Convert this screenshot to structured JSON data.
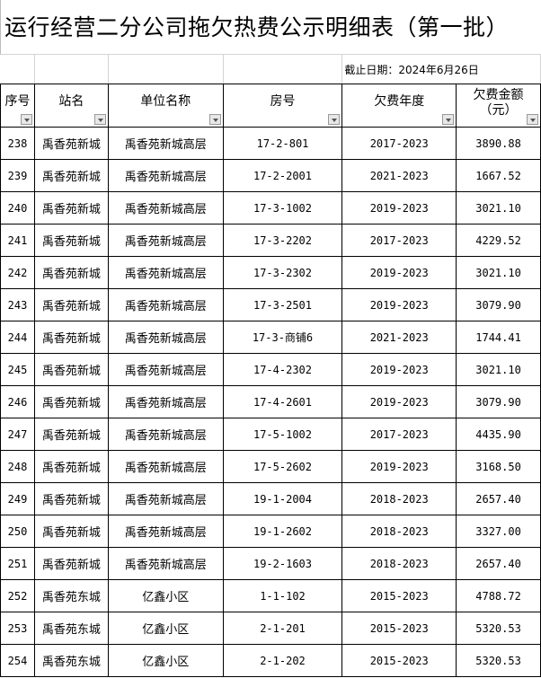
{
  "title": "运行经营二分公司拖欠热费公示明细表（第一批）",
  "date_note": "截止日期：2024年6月26日",
  "headers": [
    "序号",
    "站名",
    "单位名称",
    "房号",
    "欠费年度",
    "欠费金额\n（元）"
  ],
  "rows": [
    [
      "238",
      "禹香苑新城",
      "禹香苑新城高层",
      "17-2-801",
      "2017-2023",
      "3890.88"
    ],
    [
      "239",
      "禹香苑新城",
      "禹香苑新城高层",
      "17-2-2001",
      "2021-2023",
      "1667.52"
    ],
    [
      "240",
      "禹香苑新城",
      "禹香苑新城高层",
      "17-3-1002",
      "2019-2023",
      "3021.10"
    ],
    [
      "241",
      "禹香苑新城",
      "禹香苑新城高层",
      "17-3-2202",
      "2017-2023",
      "4229.52"
    ],
    [
      "242",
      "禹香苑新城",
      "禹香苑新城高层",
      "17-3-2302",
      "2019-2023",
      "3021.10"
    ],
    [
      "243",
      "禹香苑新城",
      "禹香苑新城高层",
      "17-3-2501",
      "2019-2023",
      "3079.90"
    ],
    [
      "244",
      "禹香苑新城",
      "禹香苑新城高层",
      "17-3-商铺6",
      "2021-2023",
      "1744.41"
    ],
    [
      "245",
      "禹香苑新城",
      "禹香苑新城高层",
      "17-4-2302",
      "2019-2023",
      "3021.10"
    ],
    [
      "246",
      "禹香苑新城",
      "禹香苑新城高层",
      "17-4-2601",
      "2019-2023",
      "3079.90"
    ],
    [
      "247",
      "禹香苑新城",
      "禹香苑新城高层",
      "17-5-1002",
      "2017-2023",
      "4435.90"
    ],
    [
      "248",
      "禹香苑新城",
      "禹香苑新城高层",
      "17-5-2602",
      "2019-2023",
      "3168.50"
    ],
    [
      "249",
      "禹香苑新城",
      "禹香苑新城高层",
      "19-1-2004",
      "2018-2023",
      "2657.40"
    ],
    [
      "250",
      "禹香苑新城",
      "禹香苑新城高层",
      "19-1-2602",
      "2018-2023",
      "3327.00"
    ],
    [
      "251",
      "禹香苑新城",
      "禹香苑新城高层",
      "19-2-1603",
      "2018-2023",
      "2657.40"
    ],
    [
      "252",
      "禹香苑东城",
      "亿鑫小区",
      "1-1-102",
      "2015-2023",
      "4788.72"
    ],
    [
      "253",
      "禹香苑东城",
      "亿鑫小区",
      "2-1-201",
      "2015-2023",
      "5320.53"
    ],
    [
      "254",
      "禹香苑东城",
      "亿鑫小区",
      "2-1-202",
      "2015-2023",
      "5320.53"
    ]
  ]
}
